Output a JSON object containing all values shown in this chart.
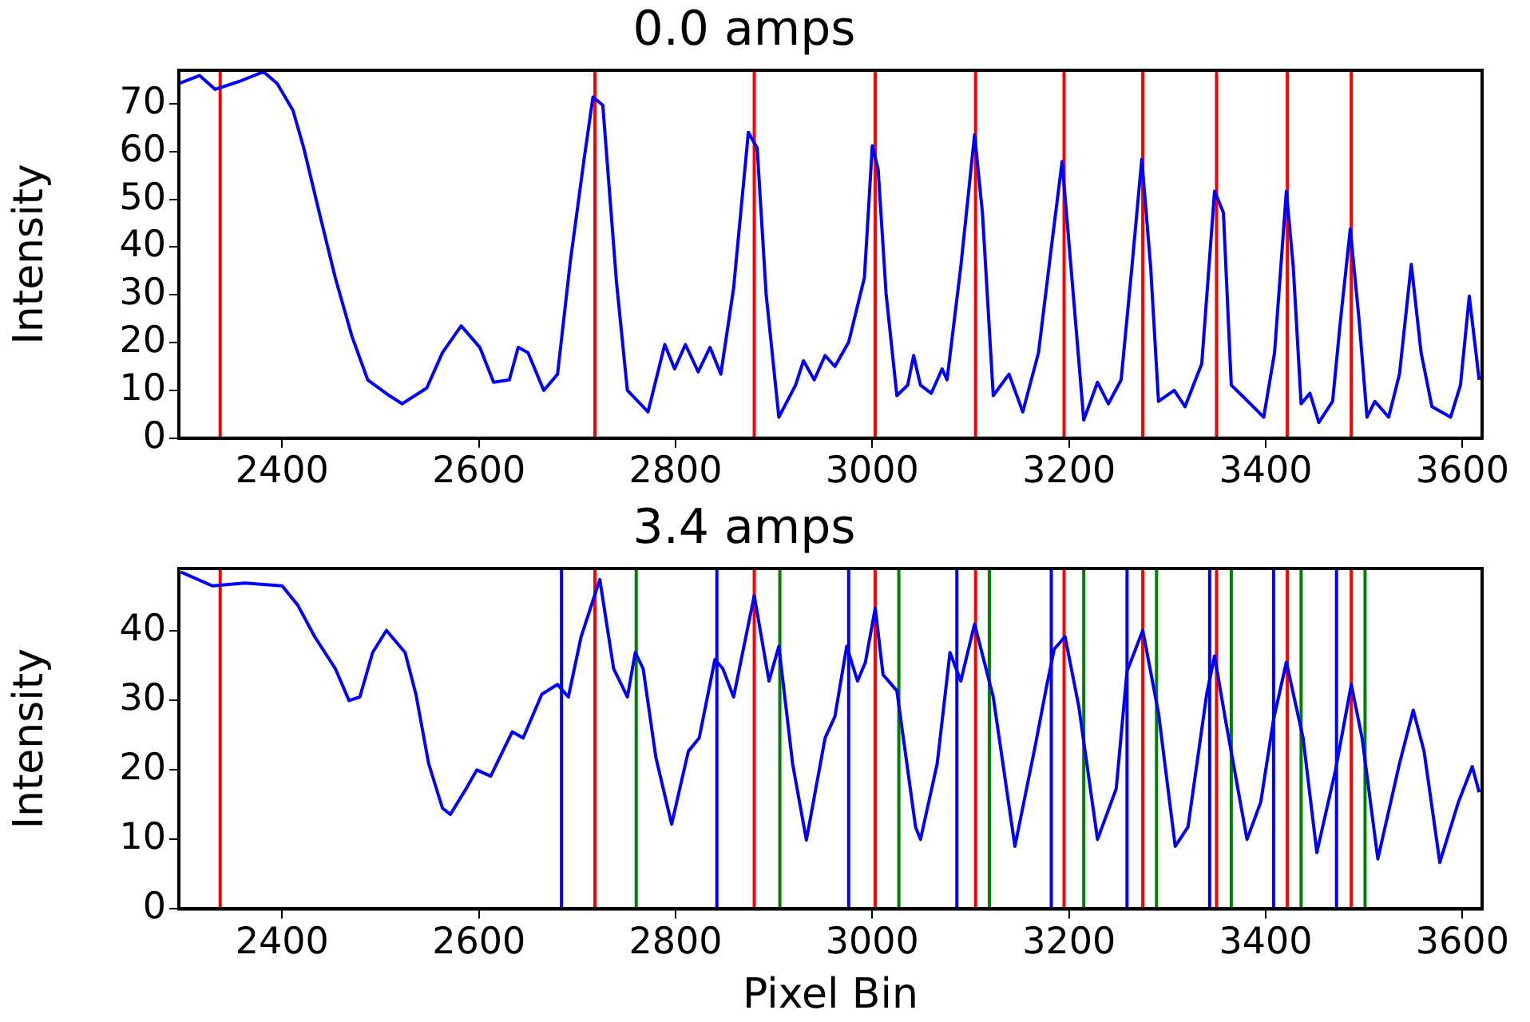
{
  "chart_data": [
    {
      "type": "line",
      "title": "0.0 amps",
      "ylabel": "Intensity",
      "xlim": [
        2295,
        3620
      ],
      "ylim": [
        0,
        77
      ],
      "xticks": [
        2400,
        2600,
        2800,
        3000,
        3200,
        3400,
        3600
      ],
      "yticks": [
        0,
        10,
        20,
        30,
        40,
        50,
        60,
        70
      ],
      "grid": false,
      "legend": false,
      "series": [
        {
          "color": "#0000ff",
          "x": [
            2295,
            2316,
            2332,
            2357,
            2381,
            2395,
            2411,
            2422,
            2438,
            2454,
            2471,
            2487,
            2509,
            2522,
            2547,
            2563,
            2582,
            2601,
            2615,
            2631,
            2640,
            2650,
            2666,
            2680,
            2693,
            2707,
            2716,
            2726,
            2740,
            2751,
            2772,
            2789,
            2799,
            2810,
            2823,
            2835,
            2846,
            2859,
            2874,
            2883,
            2892,
            2905,
            2922,
            2930,
            2941,
            2952,
            2962,
            2976,
            2992,
            3000,
            3006,
            3014,
            3025,
            3036,
            3042,
            3049,
            3060,
            3071,
            3076,
            3090,
            3104,
            3112,
            3123,
            3139,
            3153,
            3169,
            3183,
            3193,
            3202,
            3215,
            3229,
            3240,
            3253,
            3264,
            3274,
            3283,
            3291,
            3307,
            3318,
            3335,
            3348,
            3357,
            3365,
            3376,
            3398,
            3409,
            3421,
            3428,
            3436,
            3445,
            3454,
            3468,
            3476,
            3486,
            3495,
            3503,
            3511,
            3525,
            3536,
            3548,
            3558,
            3569,
            3588,
            3598,
            3607,
            3617
          ],
          "values": [
            74.2,
            75.9,
            73,
            74.7,
            76.7,
            74.2,
            68.6,
            60.7,
            47,
            33.6,
            21.3,
            12.2,
            8.9,
            7.2,
            10.5,
            17.9,
            23.5,
            19,
            11.7,
            12.2,
            19,
            17.9,
            10,
            13.4,
            37,
            58.4,
            71.4,
            69.7,
            32.5,
            10,
            5.5,
            19.6,
            14.5,
            19.6,
            13.9,
            19,
            13.4,
            31.4,
            64,
            60.7,
            30.3,
            4.4,
            11.1,
            16.2,
            12.2,
            17.3,
            15,
            20.1,
            33.6,
            61.2,
            56.2,
            30.3,
            8.9,
            11.1,
            17.3,
            11.1,
            9.4,
            14.5,
            12.2,
            35.9,
            63.5,
            47.2,
            8.9,
            13.4,
            5.5,
            17.9,
            41.5,
            57.9,
            35.9,
            3.8,
            11.7,
            7.2,
            12.2,
            35.9,
            58.4,
            35.9,
            7.7,
            10,
            6.6,
            15.6,
            51.7,
            47.2,
            11.1,
            8.9,
            4.4,
            17.9,
            51.7,
            35.9,
            7.2,
            9.4,
            3.3,
            7.7,
            24.6,
            43.8,
            24.6,
            4.4,
            7.7,
            4.4,
            13.4,
            36.4,
            17.9,
            6.6,
            4.4,
            11.1,
            29.7,
            12.2
          ]
        }
      ],
      "ref_lines": [
        {
          "axis": "x",
          "value": 2337,
          "color": "#ff0000"
        },
        {
          "axis": "x",
          "value": 2718,
          "color": "#ff0000"
        },
        {
          "axis": "x",
          "value": 2880,
          "color": "#ff0000"
        },
        {
          "axis": "x",
          "value": 3003,
          "color": "#ff0000"
        },
        {
          "axis": "x",
          "value": 3105,
          "color": "#ff0000"
        },
        {
          "axis": "x",
          "value": 3195,
          "color": "#ff0000"
        },
        {
          "axis": "x",
          "value": 3275,
          "color": "#ff0000"
        },
        {
          "axis": "x",
          "value": 3350,
          "color": "#ff0000"
        },
        {
          "axis": "x",
          "value": 3422,
          "color": "#ff0000"
        },
        {
          "axis": "x",
          "value": 3487,
          "color": "#ff0000"
        }
      ]
    },
    {
      "type": "line",
      "title": "3.4 amps",
      "xlabel": "Pixel Bin",
      "ylabel": "Intensity",
      "xlim": [
        2295,
        3620
      ],
      "ylim": [
        0,
        49
      ],
      "xticks": [
        2400,
        2600,
        2800,
        3000,
        3200,
        3400,
        3600
      ],
      "yticks": [
        0,
        10,
        20,
        30,
        40
      ],
      "grid": false,
      "legend": false,
      "series": [
        {
          "color": "#0000ff",
          "x": [
            2297,
            2329,
            2362,
            2400,
            2416,
            2433,
            2454,
            2468,
            2479,
            2492,
            2506,
            2525,
            2536,
            2549,
            2563,
            2571,
            2587,
            2598,
            2612,
            2634,
            2645,
            2664,
            2680,
            2691,
            2704,
            2723,
            2737,
            2751,
            2759,
            2767,
            2780,
            2796,
            2813,
            2824,
            2840,
            2848,
            2859,
            2880,
            2895,
            2905,
            2919,
            2933,
            2952,
            2962,
            2974,
            2985,
            2993,
            3003,
            3011,
            3025,
            3044,
            3049,
            3066,
            3079,
            3090,
            3104,
            3123,
            3145,
            3166,
            3177,
            3185,
            3196,
            3210,
            3229,
            3248,
            3259,
            3275,
            3291,
            3308,
            3321,
            3340,
            3348,
            3359,
            3381,
            3395,
            3408,
            3421,
            3438,
            3452,
            3471,
            3487,
            3498,
            3514,
            3536,
            3550,
            3561,
            3577,
            3596,
            3610,
            3617
          ],
          "values": [
            48.5,
            46.5,
            46.9,
            46.5,
            43.7,
            39.2,
            34.6,
            30,
            30.5,
            36.9,
            40.1,
            36.9,
            30.9,
            20.9,
            14.5,
            13.6,
            17.3,
            20,
            19.1,
            25.5,
            24.6,
            30.9,
            32.3,
            30.5,
            39.2,
            47.4,
            34.6,
            30.5,
            36.9,
            34.6,
            21.8,
            12.2,
            22.7,
            24.6,
            35.9,
            34.6,
            30.5,
            45.1,
            32.8,
            37.8,
            20.9,
            9.9,
            24.6,
            27.7,
            37.8,
            32.8,
            35.5,
            43.3,
            33.7,
            31.4,
            11.8,
            10,
            20.9,
            36.9,
            32.8,
            41,
            30.5,
            9,
            23.7,
            31.9,
            37.4,
            39.2,
            29.1,
            10,
            17.3,
            34.2,
            40.1,
            28.2,
            9,
            11.8,
            30.9,
            36.4,
            27.3,
            10,
            15.4,
            27.3,
            35.5,
            24.6,
            8.1,
            20,
            32.3,
            24.6,
            7.2,
            20.9,
            28.6,
            22.7,
            6.7,
            15.4,
            20.5,
            16.8
          ]
        }
      ],
      "ref_lines": [
        {
          "axis": "x",
          "value": 2337,
          "color": "#ff0000"
        },
        {
          "axis": "x",
          "value": 2718,
          "color": "#ff0000"
        },
        {
          "axis": "x",
          "value": 2880,
          "color": "#ff0000"
        },
        {
          "axis": "x",
          "value": 3003,
          "color": "#ff0000"
        },
        {
          "axis": "x",
          "value": 3105,
          "color": "#ff0000"
        },
        {
          "axis": "x",
          "value": 3195,
          "color": "#ff0000"
        },
        {
          "axis": "x",
          "value": 3275,
          "color": "#ff0000"
        },
        {
          "axis": "x",
          "value": 3350,
          "color": "#ff0000"
        },
        {
          "axis": "x",
          "value": 3422,
          "color": "#ff0000"
        },
        {
          "axis": "x",
          "value": 3487,
          "color": "#ff0000"
        },
        {
          "axis": "x",
          "value": 2684,
          "color": "#0000ff"
        },
        {
          "axis": "x",
          "value": 2842,
          "color": "#0000ff"
        },
        {
          "axis": "x",
          "value": 2976,
          "color": "#0000ff"
        },
        {
          "axis": "x",
          "value": 3086,
          "color": "#0000ff"
        },
        {
          "axis": "x",
          "value": 3182,
          "color": "#0000ff"
        },
        {
          "axis": "x",
          "value": 3259,
          "color": "#0000ff"
        },
        {
          "axis": "x",
          "value": 3343,
          "color": "#0000ff"
        },
        {
          "axis": "x",
          "value": 3408,
          "color": "#0000ff"
        },
        {
          "axis": "x",
          "value": 3472,
          "color": "#0000ff"
        },
        {
          "axis": "x",
          "value": 2760,
          "color": "#008000"
        },
        {
          "axis": "x",
          "value": 2906,
          "color": "#008000"
        },
        {
          "axis": "x",
          "value": 3027,
          "color": "#008000"
        },
        {
          "axis": "x",
          "value": 3119,
          "color": "#008000"
        },
        {
          "axis": "x",
          "value": 3215,
          "color": "#008000"
        },
        {
          "axis": "x",
          "value": 3289,
          "color": "#008000"
        },
        {
          "axis": "x",
          "value": 3365,
          "color": "#008000"
        },
        {
          "axis": "x",
          "value": 3436,
          "color": "#008000"
        },
        {
          "axis": "x",
          "value": 3501,
          "color": "#008000"
        }
      ]
    }
  ]
}
